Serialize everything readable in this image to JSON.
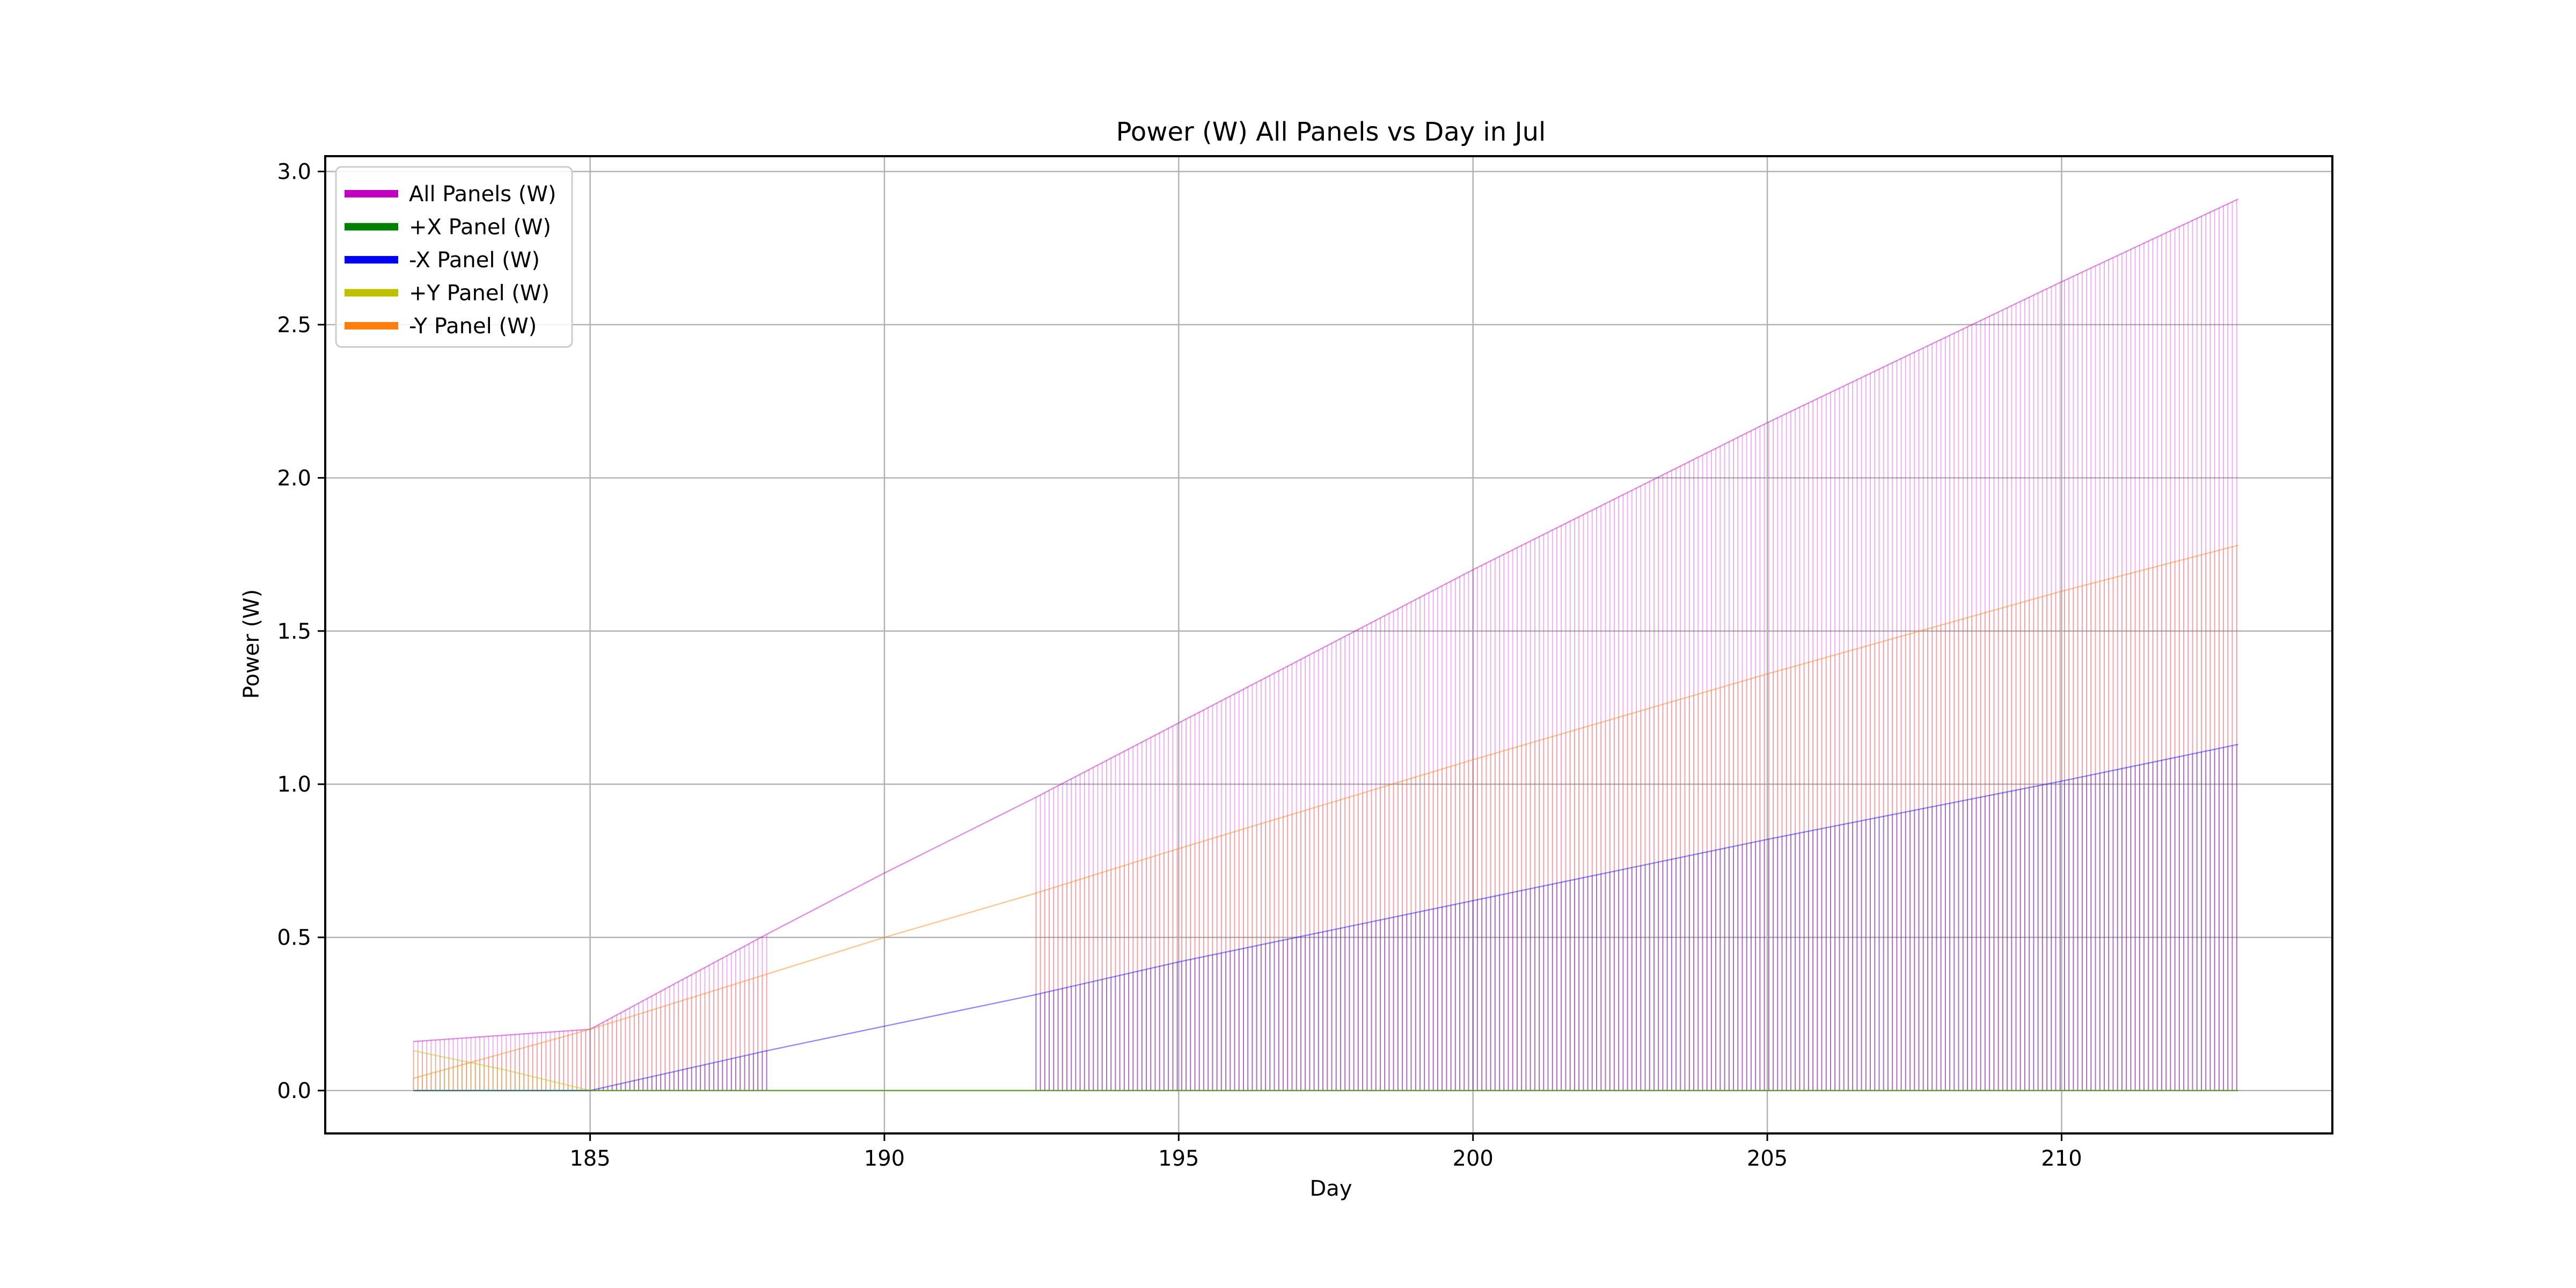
{
  "chart_data": {
    "type": "line",
    "title": "Power (W) All Panels vs Day in Jul",
    "xlabel": "Day",
    "ylabel": "Power (W)",
    "xlim": [
      180.5,
      214.6
    ],
    "ylim": [
      -0.14,
      3.05
    ],
    "xticks": [
      185,
      190,
      195,
      200,
      205,
      210
    ],
    "yticks": [
      0.0,
      0.5,
      1.0,
      1.5,
      2.0,
      2.5,
      3.0
    ],
    "grid": true,
    "legend_position": "top-left",
    "x_range": [
      182.0,
      213.0
    ],
    "data_gap": [
      188.0,
      192.5
    ],
    "series": [
      {
        "name": "All Panels (W)",
        "color": "#bf00bf",
        "envelope": [
          [
            182.0,
            0.16
          ],
          [
            185.0,
            0.2
          ],
          [
            188.0,
            0.51
          ],
          [
            190.0,
            0.71
          ],
          [
            192.5,
            0.95
          ],
          [
            195.0,
            1.2
          ],
          [
            200.0,
            1.7
          ],
          [
            205.0,
            2.18
          ],
          [
            210.0,
            2.64
          ],
          [
            213.0,
            2.91
          ]
        ]
      },
      {
        "name": "+X Panel (W)",
        "color": "#008000",
        "envelope": [
          [
            182.0,
            0.0
          ],
          [
            213.0,
            0.0
          ]
        ]
      },
      {
        "name": "-X Panel (W)",
        "color": "#0000ff",
        "envelope": [
          [
            182.0,
            0.0
          ],
          [
            185.0,
            0.0
          ],
          [
            188.0,
            0.13
          ],
          [
            190.0,
            0.21
          ],
          [
            192.5,
            0.31
          ],
          [
            195.0,
            0.42
          ],
          [
            200.0,
            0.62
          ],
          [
            205.0,
            0.82
          ],
          [
            210.0,
            1.01
          ],
          [
            213.0,
            1.13
          ]
        ]
      },
      {
        "name": "+Y Panel (W)",
        "color": "#bfbf00",
        "envelope": [
          [
            182.0,
            0.13
          ],
          [
            183.5,
            0.07
          ],
          [
            185.0,
            0.0
          ],
          [
            213.0,
            0.0
          ]
        ]
      },
      {
        "name": "-Y Panel (W)",
        "color": "#ff7f0e",
        "envelope": [
          [
            182.0,
            0.04
          ],
          [
            185.0,
            0.2
          ],
          [
            188.0,
            0.38
          ],
          [
            190.0,
            0.5
          ],
          [
            192.5,
            0.64
          ],
          [
            195.0,
            0.79
          ],
          [
            200.0,
            1.08
          ],
          [
            205.0,
            1.36
          ],
          [
            210.0,
            1.63
          ],
          [
            213.0,
            1.78
          ]
        ]
      }
    ]
  }
}
